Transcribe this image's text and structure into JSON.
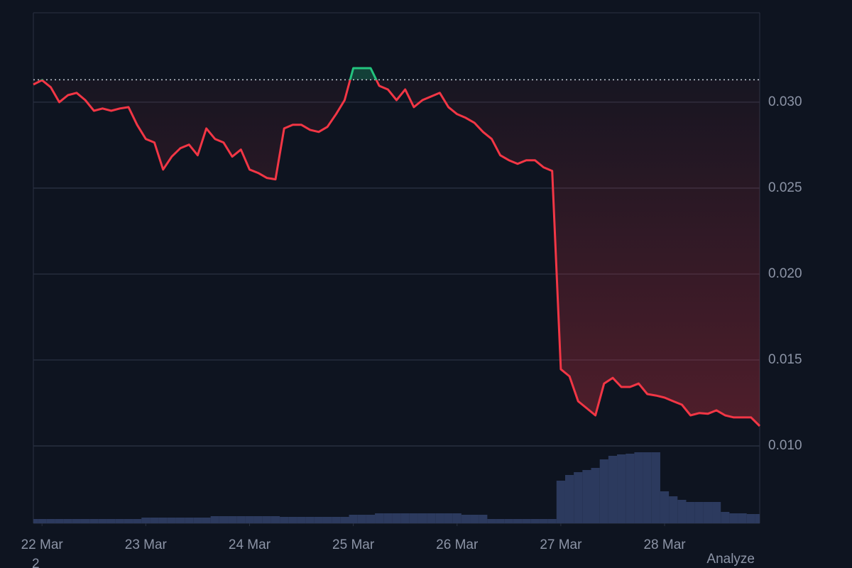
{
  "chart_data": {
    "type": "line",
    "values": [
      0.03103,
      0.03128,
      0.03087,
      0.03,
      0.03041,
      0.03054,
      0.03012,
      0.0295,
      0.02963,
      0.0295,
      0.02963,
      0.02971,
      0.02868,
      0.02786,
      0.02765,
      0.02608,
      0.02683,
      0.02732,
      0.02753,
      0.02691,
      0.02847,
      0.02786,
      0.02765,
      0.02683,
      0.02724,
      0.02608,
      0.02588,
      0.02559,
      0.02551,
      0.02847,
      0.02868,
      0.02868,
      0.02839,
      0.02827,
      0.02856,
      0.0293,
      0.03012,
      0.03198,
      0.03198,
      0.03198,
      0.03095,
      0.03074,
      0.03012,
      0.03074,
      0.02971,
      0.03012,
      0.03033,
      0.03054,
      0.02971,
      0.0293,
      0.02909,
      0.0288,
      0.02827,
      0.02786,
      0.02691,
      0.02662,
      0.02641,
      0.02662,
      0.02662,
      0.02621,
      0.026,
      0.01446,
      0.01405,
      0.0126,
      0.01219,
      0.01178,
      0.01363,
      0.01396,
      0.01343,
      0.01343,
      0.01363,
      0.01302,
      0.01293,
      0.01281,
      0.0126,
      0.0124,
      0.01178,
      0.01191,
      0.01187,
      0.01207,
      0.01178,
      0.01166,
      0.01166,
      0.01166,
      0.01116
    ],
    "volume": [
      6,
      6,
      6,
      6,
      6,
      6,
      6,
      6,
      6,
      6,
      6,
      6,
      6,
      8,
      8,
      8,
      8,
      8,
      8,
      8,
      8,
      10,
      10,
      10,
      10,
      10,
      10,
      10,
      10,
      9,
      9,
      9,
      9,
      9,
      9,
      9,
      9,
      12,
      12,
      12,
      14,
      14,
      14,
      14,
      14,
      14,
      14,
      14,
      14,
      14,
      12,
      12,
      12,
      6,
      6,
      6,
      6,
      6,
      6,
      6,
      6,
      60,
      68,
      72,
      75,
      78,
      90,
      95,
      97,
      98,
      100,
      100,
      100,
      45,
      38,
      33,
      30,
      30,
      30,
      30,
      16,
      14,
      14,
      13,
      13
    ],
    "vlim": [
      0,
      719
    ],
    "baseline": 0.0313,
    "up_color": "#23c47e",
    "down_color": "#f23645",
    "volume_color": "#2c3a5e",
    "xlim": [
      0,
      84
    ],
    "xticks": [
      {
        "value": 1,
        "label": "22 Mar"
      },
      {
        "value": 13,
        "label": "23 Mar"
      },
      {
        "value": 25,
        "label": "24 Mar"
      },
      {
        "value": 37,
        "label": "25 Mar"
      },
      {
        "value": 49,
        "label": "26 Mar"
      },
      {
        "value": 61,
        "label": "27 Mar"
      },
      {
        "value": 73,
        "label": "28 Mar"
      }
    ],
    "ylim": [
      0.0055,
      0.0352
    ],
    "yticks": [
      {
        "value": 0.01,
        "label": "0.010"
      },
      {
        "value": 0.015,
        "label": "0.015"
      },
      {
        "value": 0.02,
        "label": "0.020"
      },
      {
        "value": 0.025,
        "label": "0.025"
      },
      {
        "value": 0.03,
        "label": "0.030"
      }
    ],
    "grid": true,
    "footer_left": "2",
    "footer_right": "Analyze"
  }
}
